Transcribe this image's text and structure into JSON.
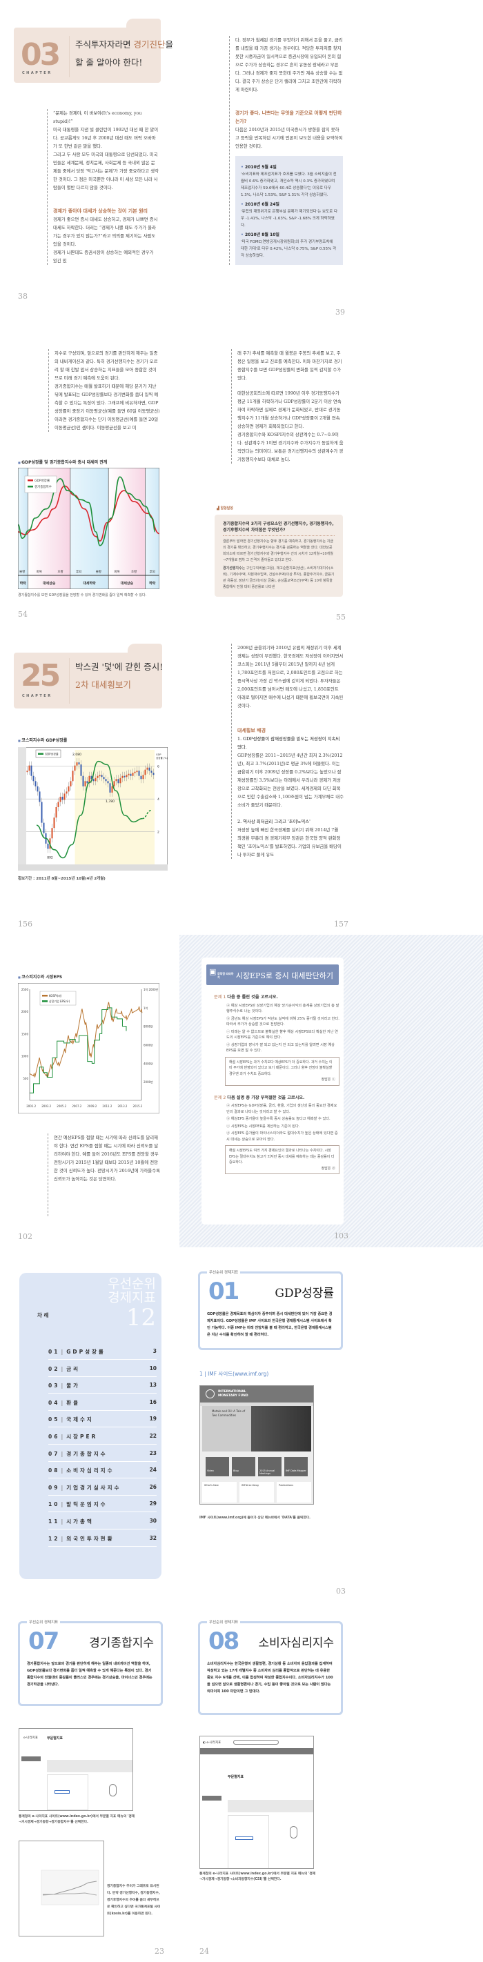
{
  "spread1": {
    "chapter": {
      "number": "03",
      "label": "CHAPTER",
      "title_a": "주식투자자라면 ",
      "title_accent": "경기진단",
      "title_b": "을",
      "title_line2": "할 줄 알아야 한다!"
    },
    "left_paras": [
      "“문제는 경제야, 이 바보야(It's economy, you stupid)!”",
      "미국 대통령을 지낸 빌 클린턴이 1992년 대선 때 한 말이다. 공교롭게도 16년 후 2008년 대선 때도 버락 오바마가 또 한번 같은 말을 했다.",
      "그리고 두 사람 모두 미국의 대통령으로 당선되었다. 미국민들은 세계문제, 정치문제, 사회문제 등 국내외 많은 문제들 중에서 당장 '먹고사는 문제'가 가장 중요하다고 생각한 것이다. 그 점은 미국뿐만 아니라 이 세상 모든 나라 사람들이 별반 다르지 않을 것이다."
    ],
    "left_heading": "경제가 좋아야 대세가 상승하는 것이 기본 원리",
    "left_paras2": [
      "경제가 좋으면 증시 대세도 상승하고, 경제가 나쁘면 증시 대세도 하락한다. 더러는 “경제가 나쁠 때도 주가가 올라가는 경우가 있지 않는가?”라고 의의를 제기하는 사람도 있을 것이다.",
      "경제가 나쁜데도 증권시장이 상승하는 예외적인 경우가 있긴 있"
    ],
    "right_paras": [
      "다. 정부가 침체된 경기를 부양하기 위해서 돈을 풀고, 금리를 내렸을 때 가끔 생기는 경우이다. 적당한 투자처를 찾지 못한 시중자금이 일시적으로 증권시장에 유입되어 돈의 힘으로 주가가 상승하는 경우로 흔히 유동성 장세라고 부른다. 그러나 경제가 좋지 못한데 주가만 계속 상승할 수는 없다. 결국 주가 상승은 단기 랠리에 그치고 조만간에 하락하게 마련이다."
    ],
    "right_heading": "경기가 좋다, 나쁘다는 무엇을 기준으로 어떻게 판단하는가?",
    "right_paras2": [
      "다음은 2010년과 2015년 미국증시가 방향을 잡지 못하고 등락을 반복하던 시기에 언론이 보도한 내용을 요약하여 인용한 것이다."
    ],
    "news": [
      {
        "date": "2010년 5월 4일",
        "text": "'소비지표와 제조업지표가 호조를 보였다. 3월 소비지출이 전월비 0.6% 증가하였고, 개인소득 역시 0.3% 증가하였으며 제조업지수가 59.6에서 60.4로 상승했다'는 이유로 다우 1.3%, 나스닥 1.53%, S&P 1.31% 각각 상승하였다."
      },
      {
        "date": "2010년 6월 24일",
        "text": "'유럽의 재정위기로 은행부실 문제가 제기되었다'는 보도로 다우 -1.41%, 나스닥 -1.63%, S&P -1.68% 크게 하락하였다."
      },
      {
        "date": "2010년 8월 10일",
        "text": "'미국 FOMC(연방공개시장위원회)의 추가 경기부양조치에 대한 기대'로 다우 0.42%, 나스닥 0.75%, S&P 0.55% 각각 상승하였다."
      }
    ],
    "page_left": "38",
    "page_right": "39"
  },
  "spread2": {
    "left_paras": [
      "지수로 구성되며, 앞으로의 경기를 판단하게 해주는 일종의 내비게이션과 같다. 특히 경기선행지수는 경기가 오르려 할 때 한발 앞서 상승하는 지표들을 모아 종합한 것이므로 미래 경기 예측에 도움이 된다.",
      "경기종합지수는 매월 발표하기 때문에 해당 분기가 지난 뒤에 발표되는 GDP성장률보다 경기변화를 좀더 일찍 예측할 수 있다는 특징이 있다. 그래프에 비유하자면, GDP성장률이 중장기 이동평균선(예를 들면 60일 이동평균선)이라면 경기종합지수는 단기 이동평균선(예를 들면 20일 이동평균선)인 셈이다. 이동평균선을 보고 미"
    ],
    "chart_title": "GDP성장률 및 경기종합지수와 증시 대세의 관계",
    "chart_caption": "경기종합지수를 보면 GDP성장률을 전망할 수 있어 경기변화를 좀더 일찍 예측할 수 있다.",
    "right_paras": [
      "래 주가 추세를 예측할 때 월봉은 주봉의 추세를 보고, 주봉은 일봉을 보고 진로를 예측한다. 이와 마찬가지로 경기종합지수를 보면 GDP성장률의 변화를 일찍 감지할 수가 있다.",
      "대한상공회의소에 따르면 1990년 이후 경기동행지수가 평균 11개월 하락하거나 GDP성장률이 2분기 이상 연속하여 하락하면 실제로 경제가 둔화되었고, 반대로 경기동행지수가 11개월 상승하거나 GDP성장률이 2개월 연속 상승하면 경제가 회복되었다고 한다.",
      "경기종합지수와 KOSPI지수의 상관계수는 0.7~0.9이다. 상관계수가 1이면 경기지수와 주가지수가 동일하게 움직인다는 의미이다. 보통은 경기선행지수의 상관계수가 경기동행지수보다 대체로 높다."
    ],
    "tip": {
      "badge": "알쏭달쏭",
      "question": "경기종합지수의 3가지 구성요소인 경기선행지수, 경기동행지수, 경기후행지수의 차이점은 무엇인가?",
      "text": "결론부터 말하면 경기선행지수는 향후 경기를 예측하고, 경기동행지수는 지금의 경기를 확인하고, 경기후행지수는 경기를 검증하는 역할을 한다. 대한상공회의소에 따르면 경기선행지수와 경기후행지수 간의 시차가 12개월→10개월→7개월로 점차 그 간격이 줄어들고 있다고 한다.",
      "term": "경기선행지수",
      "term_text": "는 구인구직비율(고용), 재고순환지표(생산), 소비자기대지수(소비), 기계수주액, 자본재수입액, 건설수주액(이상 투자), 종합주가지수, 금융기관 유동성, 장단기 금리차(이상 금융), 순상품교역조건(무역) 등 10개 항목을 종합해서 전월 대비 증감률로 나타낸"
    },
    "page_left": "54",
    "page_right": "55"
  },
  "spread3": {
    "chapter": {
      "number": "25",
      "label": "CHAPTER",
      "title_line1": "박스권 '덫'에 갇힌 증시!",
      "title_line2": "2차 대세횡보기"
    },
    "chart_title": "코스피지수와 GDP성장률",
    "chart_caption": "횡보기간 : 2011년 8월~2015년 10월(4년 2개월)",
    "right_paras": [
      "2008년 금융위기와 2010년 유럽의 재정위기 이후 세계경제는 성장이 부진했다. 한국경제도 저성장이 이어지면서 코스피는 2011년 5월부터 2015년 말까지 4년 넘게 1,780포인트를 저점으로, 2,080포인트를 고점으로 하는 증시역사상 가장 긴 박스권에 갇히게 되었다. 투자자들은 2,000포인트를 넘어서면 매도에 나섰고, 1,850포인트 아래로 떨어지면 매수에 나섰기 때문에 횡보국면이 지속된 것이다."
    ],
    "right_heading": "대세횡보 배경",
    "right_sub1": "1. GDP성장률이 잠재성장률을 밑도는 저성장이 지속되었다.",
    "right_paras2": [
      "GDP성장률은 2011~2015년 4년간 최저 2.3%(2012년), 최고 3.7%(2011년)로 평균 3%에 머물렀다. 이는 금융위기 이후 2009년 성장률 0.2%보다는 높았으나 잠재성장률인 3.5%보다는 아래에서 우리나라 경제가 저성장으로 고착화되는 현상을 보였다. 세계경제의 더딘 회복으로 인한 수출감소와 1,100조원이 넘는 가계부채로 내수소비가 줄었기 때문이다."
    ],
    "right_sub2": "2. 역사상 최저금리 그리고 '초이노믹스'",
    "right_paras3": [
      "저성장 늪에 빠진 한국경제를 살리기 위해 2014년 7월 최경환 부총리 겸 경제기획부 장관은 한국형 양적 완화정책인 '초이노믹스'를 발표하였다. 기업의 유보금을 배당이나 투자로 풀게 유도"
    ],
    "page_left": "156",
    "page_right": "157"
  },
  "spread4": {
    "chart_title": "코스피지수와 시장EPS",
    "left_paras": [
      "연간 예상EPS를 접할 때는 시기에 따라 신뢰도를 달리해야 한다. 연간 EPS를 접할 때는 시기에 따라 신뢰도를 달리하여야 한다. 예를 들어 2016년도 EPS를 전망할 경우 전망시기가 2015년 1월일 때보다 2015년 10월에 전망한 것이 신뢰도가 높다. 전망시기가 2016년에 가까울수록 신뢰도가 높아지는 것은 당연하다."
    ],
    "quiz": {
      "badge": "무작정 따라하기",
      "title": "시장EPS로 증시 대세판단하기",
      "questions": [
        {
          "label": "문제 1",
          "text": "다음 중 틀린 것을 고르시오.",
          "items": [
            "ⓐ 예상 시장EPS란 상장기업의 예상 당기순이익의 총계를 상장기업의 총 발행주식수로 나눈 것이다.",
            "ⓑ 금년도 예상 시장EPS가 작년도 실적에 비해 25% 증가될 것이라고 한다. 따라서 주가가 상승할 것으로 전망한다.",
            "ⓒ 미래는 알 수 없으므로 불확실한 향후 예상 시장EPS보다 확실한 지난 연도의 시장EPS를 기준으로 해야 한다.",
            "ⓓ 상장기업의 장사가 잘 되고 있는지 안 되고 있는지를 알려면 시장 예상EPS를 보면 알 수 있다."
          ],
          "answer": "해설  시장EPS는 과거 수치보다 예상EPS가 더 중요하다. 과거 수치는 이미 주가에 반영되어 있다고 보기 때문이다. 그러나 향후 전망이 불확실할 경우엔 과거 수치도 중요하다.",
          "answer_key": "정답은 ⓒ"
        },
        {
          "label": "문제 2",
          "text": "다음 설명 중 가장 부적절한 것을 고르시오.",
          "items": [
            "ⓐ 시장EPS는 GDP성장률, 금리, 환율, 기업의 생산성 등의 중요한 경제요인의 결과로 나타나는 것이라고 할 수 있다.",
            "ⓑ 예상EPS 증가율이 높을수록 증시 상승률도 높다고 예측할 수 있다.",
            "ⓒ 시장EPS는 시장PER를 계산하는 기준이 된다.",
            "ⓓ 시장EPS 증가율이 마이너스이더라도 절대수치가 높은 상태에 있다면 증시 대세는 상승으로 보아야 한다."
          ],
          "answer": "해설  시장EPS도 여러 가지 경제요인의 결과로 나타나는 수치이다. 시장EPS는 절대수치도 참고가 되지만 증시 대세를 예측하는 데는 증감률이 더 중요하다.",
          "answer_key": "정답은 ⓓ"
        }
      ]
    },
    "page_left": "102",
    "page_right": "103"
  },
  "spread5": {
    "toc": {
      "big1": "우선순위",
      "big2": "경제지표",
      "big3": "12",
      "heading": "차 례",
      "items": [
        {
          "no": "01",
          "label": "GDP성장률",
          "page": "3"
        },
        {
          "no": "02",
          "label": "금리",
          "page": "10"
        },
        {
          "no": "03",
          "label": "물가",
          "page": "13"
        },
        {
          "no": "04",
          "label": "환율",
          "page": "16"
        },
        {
          "no": "05",
          "label": "국제수지",
          "page": "19"
        },
        {
          "no": "06",
          "label": "시장PER",
          "page": "22"
        },
        {
          "no": "07",
          "label": "경기종합지수",
          "page": "23"
        },
        {
          "no": "08",
          "label": "소비자심리지수",
          "page": "24"
        },
        {
          "no": "09",
          "label": "기업경기실사지수",
          "page": "26"
        },
        {
          "no": "10",
          "label": "발틱운임지수",
          "page": "29"
        },
        {
          "no": "11",
          "label": "시가총액",
          "page": "30"
        },
        {
          "no": "12",
          "label": "외국인투자현황",
          "page": "32"
        }
      ]
    },
    "box": {
      "tag": "우선순위 경제지표",
      "number": "01",
      "name": "GDP성장률",
      "desc": "GDP성장률은 경제목표의 핵심이자 중추이며 증시 대세판단에 있어 가장 중요한 경제지표이다. GDP성장률은 IMF 사이트와 한국은행 경제통계시스템 사이트에서 확인 가능하다. 이중 IMF는 미래 전망치를 볼 때 편리하고, 한국은행 경제통계시스템은 지난 수치를 확인하려 할 때 편리하다."
    },
    "sub": "1 | IMF 사이트(www.imf.org)",
    "shot": {
      "brand1": "INTERNATIONAL",
      "brand2": "MONETARY FUND",
      "headline": "Metals and Oil: A Tale of Two Commodities",
      "tiles": [
        "Video",
        "Blog",
        "2015 Annual Meetings",
        "IMF Data Mapper"
      ],
      "sections": [
        "What's New",
        "IMFdirect blog",
        "Publications"
      ]
    },
    "caption": "IMF 사이트(www.imf.org)에 들어가 상단 메뉴바에서 'DATA'를 클릭한다.",
    "page_right": "03"
  },
  "spread6": {
    "box07": {
      "tag": "우선순위 경제지표",
      "number": "07",
      "name": "경기종합지수",
      "desc": "경기종합지수는 앞으로의 경기를 판단하게 해주는 일종의 내비게이션 역할을 하며, GDP성장률보다 경기변화를 좀더 일찍 예측할 수 있게 해준다는 특징이 있다. 경기종합지수의 전월대비 증감률이 플러스인 경우에는 경기상승을, 마이너스인 경우에는 경기하강을 나타낸다."
    },
    "box08": {
      "tag": "우선순위 경제지표",
      "number": "08",
      "name": "소비자심리지수",
      "desc": "소비자심리지수는 한국은행이 생활형편, 경기상황 등 소비자의 응답결과를 집계하여 작성하고 있는 17개 개별지수 중 소비자의 심리를 종합적으로 판단하는 데 유용한 중요 지수 6개를 선택, 이를 합성하여 작성한 종합지수이다. 소비자심리지수가 100을 넘으면 앞으로 생활형편이나 경기, 수입 등이 좋아질 것으로 보는 사람이 많다는 의미이며 100 미만이면 그 반대다."
    },
    "shot_site": "e-나라지표",
    "shot_section": "부문별지표",
    "caption1": "통계청의 e-나라지표 사이트(www.index.go.kr)에서 부문별 지표 메뉴의 '경제→거시경제→경기동향→경기종합지수'를 선택한다.",
    "caption2": "경기종합지수 추이가 그래프로 표시된다. 만약 경기선행지수, 경기동행지수, 경기후행지수의 추이를 좀더 세부적으로 확인하고 싶다면 국가통계포털 사이트(kosis.kr)를 이용하면 된다.",
    "caption3": "통계청의 e-나라지표 사이트(www.index.go.kr)에서 부문별 지표 메뉴의 '경제→거시경제→경기동향→소비자동향지수(CSI)'를 선택한다.",
    "page_left": "23",
    "page_right": "24"
  },
  "chart_data": [
    {
      "type": "line",
      "title": "GDP성장률 및 경기종합지수와 증시 대세의 관계",
      "xlim": [
        0,
        100
      ],
      "ylim": [
        0,
        110
      ],
      "legend": "top-left",
      "series": [
        {
          "name": "GDP성장률",
          "color": "#d9252b",
          "x": [
            0,
            5,
            10,
            20,
            25,
            33,
            40,
            47,
            55,
            58,
            63,
            75,
            82,
            92,
            100
          ],
          "y": [
            40,
            37,
            42,
            55,
            65,
            90,
            80,
            65,
            35,
            30,
            50,
            85,
            73,
            60,
            38
          ]
        },
        {
          "name": "경기종합지수",
          "color": "#1d8f3a",
          "x": [
            0,
            3,
            8,
            12,
            20,
            30,
            35,
            45,
            50,
            55,
            58,
            66,
            72,
            78,
            85,
            90,
            95,
            97
          ],
          "y": [
            48,
            33,
            42,
            55,
            65,
            98,
            85,
            75,
            72,
            40,
            25,
            55,
            100,
            82,
            75,
            68,
            55,
            40
          ]
        }
      ],
      "phases": [
        {
          "label": "불황",
          "x": 3
        },
        {
          "label": "회복",
          "x": 15
        },
        {
          "label": "호황",
          "x": 30
        },
        {
          "label": "후퇴",
          "x": 43
        },
        {
          "label": "불황",
          "x": 57
        },
        {
          "label": "회복",
          "x": 70
        },
        {
          "label": "호황",
          "x": 82
        },
        {
          "label": "후퇴",
          "x": 95
        }
      ],
      "bands": [
        {
          "label": "하락",
          "from": 0,
          "to": 7,
          "kind": "down"
        },
        {
          "label": "대세상승",
          "from": 7,
          "to": 37,
          "kind": "up"
        },
        {
          "label": "대세하락",
          "from": 37,
          "to": 64,
          "kind": "down"
        },
        {
          "label": "대세상승",
          "from": 64,
          "to": 90,
          "kind": "up"
        },
        {
          "label": "하락",
          "from": 90,
          "to": 100,
          "kind": "down"
        }
      ]
    },
    {
      "type": "candlestick+line",
      "title": "코스피지수와 GDP성장률",
      "legend": "top-left",
      "kospi": [
        2000,
        2050,
        1950,
        1900,
        1850,
        1800,
        1700,
        1500,
        1400,
        1300,
        1250,
        1350,
        1450,
        1550,
        1650,
        1700,
        1750,
        1720,
        1780,
        1800,
        1850,
        1900,
        2000,
        2050,
        2080,
        2060,
        1950,
        1850,
        1900,
        1880,
        1950,
        1920,
        1900,
        1930,
        1950,
        1960,
        1940,
        1920,
        1900,
        1880,
        1790,
        1850,
        1900,
        1920,
        1880,
        1930,
        1950,
        1940,
        1960,
        1970,
        1950,
        1980,
        1990,
        2000,
        1950,
        1920,
        1960,
        2010,
        2030,
        2000,
        1980,
        1960
      ],
      "kospi_ylim": [
        1100,
        2200
      ],
      "gdp": {
        "name": "GDP성장률",
        "color": "#1d8f3a",
        "y": [
          2.4,
          1.6,
          0.9,
          0.4,
          1.2,
          3,
          5,
          6.3,
          6.1,
          4.5,
          3,
          2.6,
          2.8,
          3.3
        ],
        "dashed_from": 12
      },
      "gdp_ylim": [
        0,
        7
      ],
      "right_ticks": [
        2,
        4,
        6
      ],
      "right_axis_label": "GDP 성장률 (%)",
      "annotations": [
        "2,080",
        "1,780",
        "892"
      ],
      "sideways_highlight": true
    },
    {
      "type": "line",
      "title": "코스피지수와 시장EPS",
      "legend": "top-left",
      "xticks": [
        "2001.2",
        "2003.2",
        "2005.2",
        "2007.2",
        "2009.2",
        "2011.2",
        "2013.2",
        "2015.2"
      ],
      "xlim": [
        2001,
        2015.7
      ],
      "left_ylim": [
        0,
        2500
      ],
      "left_ticks": [
        500,
        1000,
        1500,
        2000,
        2500
      ],
      "right_ticks": [
        "2000만",
        "4000만",
        "6000만",
        "8000만",
        "1억",
        "1억 2000만"
      ],
      "right_ylim_manwon": [
        0,
        12000
      ],
      "series": [
        {
          "name": "KOSPI(좌)",
          "color": "#b8742f",
          "x": [
            2001.0,
            2001.5,
            2002.2,
            2002.7,
            2003.2,
            2003.7,
            2004.3,
            2004.7,
            2005.5,
            2006.0,
            2006.5,
            2007.0,
            2007.8,
            2008.3,
            2008.9,
            2009.3,
            2009.8,
            2010.5,
            2011.3,
            2011.8,
            2012.3,
            2013.0,
            2013.6,
            2014.3,
            2015.3,
            2015.6
          ],
          "y": [
            600,
            550,
            900,
            650,
            550,
            750,
            900,
            800,
            1100,
            1400,
            1300,
            1450,
            2000,
            1700,
            1000,
            1200,
            1650,
            1750,
            2150,
            1800,
            2000,
            1950,
            1850,
            2000,
            2050,
            2000
          ]
        },
        {
          "name": "상장기업 EPS(우)",
          "color": "#1d8f3a",
          "x": [
            2001.0,
            2001.5,
            2002.3,
            2002.8,
            2003.3,
            2004.0,
            2004.6,
            2005.5,
            2006.3,
            2007.0,
            2007.5,
            2008.5,
            2008.6,
            2009.2,
            2009.5,
            2010.2,
            2010.5,
            2011.3,
            2011.8,
            2012.5,
            2013.2,
            2013.7
          ],
          "y": [
            800,
            1800,
            3600,
            3000,
            2500,
            4600,
            6400,
            6200,
            6600,
            6300,
            7000,
            7000,
            4200,
            4000,
            6500,
            7200,
            9800,
            10000,
            9000,
            8800,
            8000,
            7500
          ]
        }
      ]
    }
  ],
  "colors": {
    "chapter_bg": "#f1e4dc",
    "chapter_num": "#c9a18a",
    "accent": "#b5744f",
    "toc_bg": "#dde6f5",
    "folder_border": "#c6d6ee",
    "folder_num": "#7ea6da",
    "quiz_bar": "#7b8fb8"
  }
}
